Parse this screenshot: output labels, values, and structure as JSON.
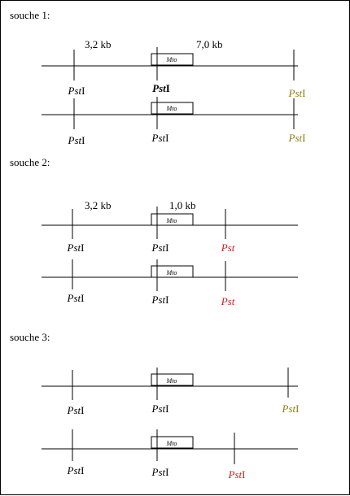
{
  "colors": {
    "black": "#000000",
    "olive": "#8b7d12",
    "red": "#cc1f1f"
  },
  "gene_label": "Mto",
  "strains": [
    {
      "title": "souche 1:",
      "distances": [
        "3,2 kb",
        "7,0 kb"
      ],
      "molecules": [
        {
          "sites": [
            {
              "name": "Pst",
              "suffix": "I",
              "color": "black",
              "bold": false
            },
            {
              "name": "Pst",
              "suffix": "I",
              "color": "black",
              "bold": true
            },
            {
              "name": "Pst",
              "suffix": "I",
              "color": "olive",
              "bold": false
            }
          ]
        },
        {
          "sites": [
            {
              "name": "Pst",
              "suffix": "I",
              "color": "black",
              "bold": false
            },
            {
              "name": "Pst",
              "suffix": "I",
              "color": "black",
              "bold": false
            },
            {
              "name": "Pst",
              "suffix": "I",
              "color": "olive",
              "bold": false
            }
          ]
        }
      ]
    },
    {
      "title": "souche 2:",
      "distances": [
        "3,2 kb",
        "1,0 kb"
      ],
      "molecules": [
        {
          "sites": [
            {
              "name": "Pst",
              "suffix": "I",
              "color": "black",
              "bold": false
            },
            {
              "name": "Pst",
              "suffix": "I",
              "color": "black",
              "bold": false
            },
            {
              "name": "Pst",
              "suffix": "",
              "color": "red",
              "bold": false
            }
          ]
        },
        {
          "sites": [
            {
              "name": "Pst",
              "suffix": "I",
              "color": "black",
              "bold": false
            },
            {
              "name": "Pst",
              "suffix": "I",
              "color": "black",
              "bold": false
            },
            {
              "name": "Pst",
              "suffix": "",
              "color": "red",
              "bold": false
            }
          ]
        }
      ]
    },
    {
      "title": "souche 3:",
      "distances": [],
      "molecules": [
        {
          "sites": [
            {
              "name": "Pst",
              "suffix": "I",
              "color": "black",
              "bold": false
            },
            {
              "name": "Pst",
              "suffix": "I",
              "color": "black",
              "bold": false
            },
            {
              "name": "Pst",
              "suffix": "I",
              "color": "olive",
              "bold": false
            }
          ]
        },
        {
          "sites": [
            {
              "name": "Pst",
              "suffix": "I",
              "color": "black",
              "bold": false
            },
            {
              "name": "Pst",
              "suffix": "I",
              "color": "black",
              "bold": false
            },
            {
              "name": "Pst",
              "suffix": "I",
              "color": "red",
              "bold": false
            }
          ]
        }
      ]
    }
  ]
}
